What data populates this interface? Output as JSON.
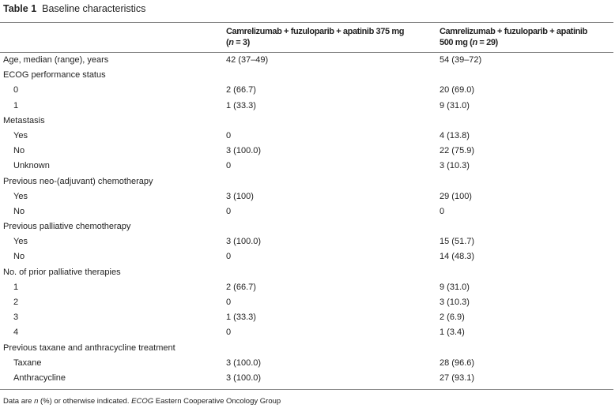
{
  "title": {
    "label": "Table 1",
    "text": "Baseline characteristics"
  },
  "header": {
    "col2_line1": "Camrelizumab + fuzuloparib + apatinib 375 mg",
    "col2_line2_pre": "(",
    "col2_n": "n",
    "col2_line2_post": " = 3)",
    "col3_line1": "Camrelizumab + fuzuloparib + apatinib",
    "col3_line2_pre": "500 mg (",
    "col3_n": "n",
    "col3_line2_post": " = 29)"
  },
  "rows": [
    {
      "label": "Age, median (range), years",
      "indent": false,
      "v1": "42 (37–49)",
      "v2": "54 (39–72)"
    },
    {
      "label": "ECOG performance status",
      "indent": false,
      "v1": "",
      "v2": ""
    },
    {
      "label": "0",
      "indent": true,
      "v1": "2 (66.7)",
      "v2": "20 (69.0)"
    },
    {
      "label": "1",
      "indent": true,
      "v1": "1 (33.3)",
      "v2": "9 (31.0)"
    },
    {
      "label": "Metastasis",
      "indent": false,
      "v1": "",
      "v2": ""
    },
    {
      "label": "Yes",
      "indent": true,
      "v1": "0",
      "v2": "4 (13.8)"
    },
    {
      "label": "No",
      "indent": true,
      "v1": "3 (100.0)",
      "v2": "22 (75.9)"
    },
    {
      "label": "Unknown",
      "indent": true,
      "v1": "0",
      "v2": "3 (10.3)"
    },
    {
      "label": "Previous neo-(adjuvant) chemotherapy",
      "indent": false,
      "v1": "",
      "v2": ""
    },
    {
      "label": "Yes",
      "indent": true,
      "v1": "3 (100)",
      "v2": "29 (100)"
    },
    {
      "label": "No",
      "indent": true,
      "v1": "0",
      "v2": "0"
    },
    {
      "label": "Previous palliative chemotherapy",
      "indent": false,
      "v1": "",
      "v2": ""
    },
    {
      "label": "Yes",
      "indent": true,
      "v1": "3 (100.0)",
      "v2": "15 (51.7)"
    },
    {
      "label": "No",
      "indent": true,
      "v1": "0",
      "v2": "14 (48.3)"
    },
    {
      "label": "No. of prior palliative therapies",
      "indent": false,
      "v1": "",
      "v2": ""
    },
    {
      "label": "1",
      "indent": true,
      "v1": "2 (66.7)",
      "v2": "9 (31.0)"
    },
    {
      "label": "2",
      "indent": true,
      "v1": "0",
      "v2": "3 (10.3)"
    },
    {
      "label": "3",
      "indent": true,
      "v1": "1 (33.3)",
      "v2": "2 (6.9)"
    },
    {
      "label": "4",
      "indent": true,
      "v1": "0",
      "v2": "1 (3.4)"
    },
    {
      "label": "Previous taxane and anthracycline treatment",
      "indent": false,
      "v1": "",
      "v2": ""
    },
    {
      "label": "Taxane",
      "indent": true,
      "v1": "3 (100.0)",
      "v2": "28 (96.6)"
    },
    {
      "label": "Anthracycline",
      "indent": true,
      "v1": "3 (100.0)",
      "v2": "27 (93.1)"
    }
  ],
  "footnote": {
    "pre": "Data are ",
    "n": "n",
    "mid": " (%) or otherwise indicated. ",
    "abbr": "ECOG",
    "post": " Eastern Cooperative Oncology Group"
  }
}
